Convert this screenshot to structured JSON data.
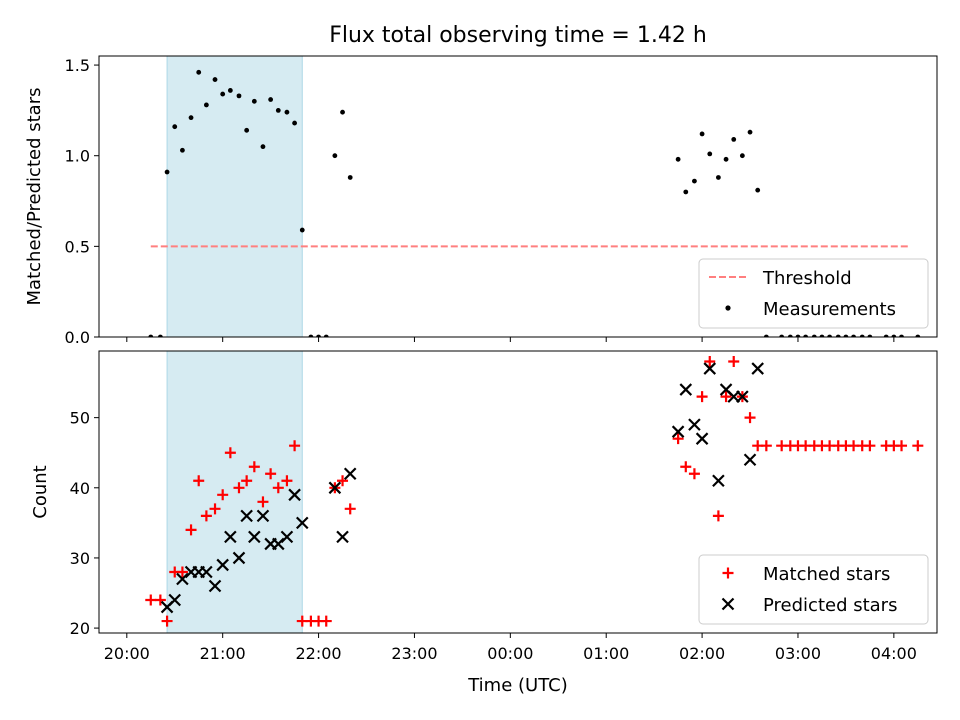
{
  "chart_data": {
    "title": "Flux total observing time = 1.42 h",
    "xlabel": "Time (UTC)",
    "x_tick_labels": [
      "20:00",
      "21:00",
      "22:00",
      "23:00",
      "00:00",
      "01:00",
      "02:00",
      "03:00",
      "04:00"
    ],
    "x_tick_hours": [
      20,
      21,
      22,
      23,
      24,
      25,
      26,
      27,
      28
    ],
    "xlim_hours": [
      19.71,
      28.45
    ],
    "highlight_span_hours": [
      20.42,
      21.83
    ],
    "highlight_color": "#add8e6",
    "panels": [
      {
        "type": "scatter",
        "ylabel": "Matched/Predicted stars",
        "ylim": [
          0,
          1.55
        ],
        "y_ticks": [
          0.0,
          0.5,
          1.0,
          1.5
        ],
        "y_tick_labels": [
          "0.0",
          "0.5",
          "1.0",
          "1.5"
        ],
        "legend_position": "lower-right",
        "threshold": {
          "name": "Threshold",
          "value": 0.5,
          "x_range_hours": [
            20.25,
            28.17
          ],
          "color": "#ff7f7f"
        },
        "series": [
          {
            "name": "Measurements",
            "color": "#000000",
            "marker": "dot",
            "x": [
              20.25,
              20.35,
              20.42,
              20.5,
              20.58,
              20.67,
              20.75,
              20.83,
              20.92,
              21.0,
              21.08,
              21.17,
              21.25,
              21.33,
              21.42,
              21.5,
              21.58,
              21.67,
              21.75,
              21.83,
              21.92,
              22.0,
              22.08,
              22.17,
              22.25,
              22.33,
              25.75,
              25.83,
              25.92,
              26.0,
              26.08,
              26.17,
              26.25,
              26.33,
              26.42,
              26.5,
              26.58,
              26.67,
              26.83,
              26.92,
              27.0,
              27.08,
              27.17,
              27.25,
              27.33,
              27.42,
              27.5,
              27.58,
              27.67,
              27.75,
              27.92,
              28.0,
              28.08,
              28.25
            ],
            "y": [
              0.0,
              0.0,
              0.91,
              1.16,
              1.03,
              1.21,
              1.46,
              1.28,
              1.42,
              1.34,
              1.36,
              1.33,
              1.14,
              1.3,
              1.05,
              1.31,
              1.25,
              1.24,
              1.18,
              0.59,
              0.0,
              0.0,
              0.0,
              1.0,
              1.24,
              0.88,
              0.98,
              0.8,
              0.86,
              1.12,
              1.01,
              0.88,
              0.98,
              1.09,
              1.0,
              1.13,
              0.81,
              0.0,
              0.0,
              0.0,
              0.0,
              0.0,
              0.0,
              0.0,
              0.0,
              0.0,
              0.0,
              0.0,
              0.0,
              0.0,
              0.0,
              0.0,
              0.0,
              0.0
            ]
          }
        ]
      },
      {
        "type": "scatter",
        "ylabel": "Count",
        "ylim": [
          19.3,
          59.5
        ],
        "y_ticks": [
          20,
          30,
          40,
          50
        ],
        "y_tick_labels": [
          "20",
          "30",
          "40",
          "50"
        ],
        "legend_position": "lower-right",
        "series": [
          {
            "name": "Matched stars",
            "color": "#ff0000",
            "marker": "plus",
            "x": [
              20.25,
              20.35,
              20.42,
              20.5,
              20.58,
              20.67,
              20.75,
              20.83,
              20.92,
              21.0,
              21.08,
              21.17,
              21.25,
              21.33,
              21.42,
              21.5,
              21.58,
              21.67,
              21.75,
              21.83,
              21.92,
              22.0,
              22.08,
              22.17,
              22.25,
              22.33,
              25.75,
              25.83,
              25.92,
              26.0,
              26.08,
              26.17,
              26.25,
              26.33,
              26.42,
              26.5,
              26.58,
              26.67,
              26.83,
              26.92,
              27.0,
              27.08,
              27.17,
              27.25,
              27.33,
              27.42,
              27.5,
              27.58,
              27.67,
              27.75,
              27.92,
              28.0,
              28.08,
              28.25
            ],
            "y": [
              24,
              24,
              21,
              28,
              28,
              34,
              41,
              36,
              37,
              39,
              45,
              40,
              41,
              43,
              38,
              42,
              40,
              41,
              46,
              21,
              21,
              21,
              21,
              40,
              41,
              37,
              47,
              43,
              42,
              53,
              58,
              36,
              53,
              58,
              53,
              50,
              46,
              46,
              46,
              46,
              46,
              46,
              46,
              46,
              46,
              46,
              46,
              46,
              46,
              46,
              46,
              46,
              46,
              46
            ]
          },
          {
            "name": "Predicted stars",
            "color": "#000000",
            "marker": "x",
            "x": [
              20.42,
              20.5,
              20.58,
              20.67,
              20.75,
              20.83,
              20.92,
              21.0,
              21.08,
              21.17,
              21.25,
              21.33,
              21.42,
              21.5,
              21.58,
              21.67,
              21.75,
              21.83,
              22.17,
              22.25,
              22.33,
              25.75,
              25.83,
              25.92,
              26.0,
              26.08,
              26.17,
              26.25,
              26.33,
              26.42,
              26.5,
              26.58
            ],
            "y": [
              23,
              24,
              27,
              28,
              28,
              28,
              26,
              29,
              33,
              30,
              36,
              33,
              36,
              32,
              32,
              33,
              39,
              35,
              40,
              33,
              42,
              48,
              54,
              49,
              47,
              57,
              41,
              54,
              53,
              53,
              44,
              57
            ]
          }
        ]
      }
    ]
  }
}
